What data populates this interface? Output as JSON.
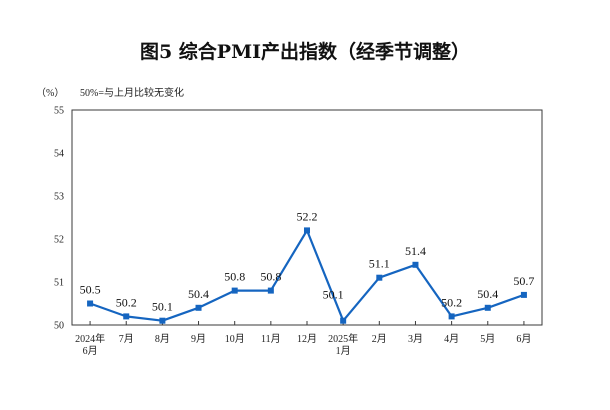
{
  "chart_data": {
    "type": "line",
    "title": "图5  综合PMI产出指数（经季节调整）",
    "unit_label": "（%）",
    "note": "50%=与上月比较无变化",
    "ylim": [
      50,
      55
    ],
    "yticks": [
      "50",
      "51",
      "52",
      "53",
      "54",
      "55"
    ],
    "categories": [
      [
        "2024年",
        "6月"
      ],
      [
        "7月"
      ],
      [
        "8月"
      ],
      [
        "9月"
      ],
      [
        "10月"
      ],
      [
        "11月"
      ],
      [
        "12月"
      ],
      [
        "2025年",
        "1月"
      ],
      [
        "2月"
      ],
      [
        "3月"
      ],
      [
        "4月"
      ],
      [
        "5月"
      ],
      [
        "6月"
      ]
    ],
    "values": [
      50.5,
      50.2,
      50.1,
      50.4,
      50.8,
      50.8,
      52.2,
      50.1,
      51.1,
      51.4,
      50.2,
      50.4,
      50.7
    ],
    "data_labels": [
      "50.5",
      "50.2",
      "50.1",
      "50.4",
      "50.8",
      "50.8",
      "52.2",
      "50.1",
      "51.1",
      "51.4",
      "50.2",
      "50.4",
      "50.7"
    ],
    "grid": false,
    "line_color": "#1565c0"
  }
}
